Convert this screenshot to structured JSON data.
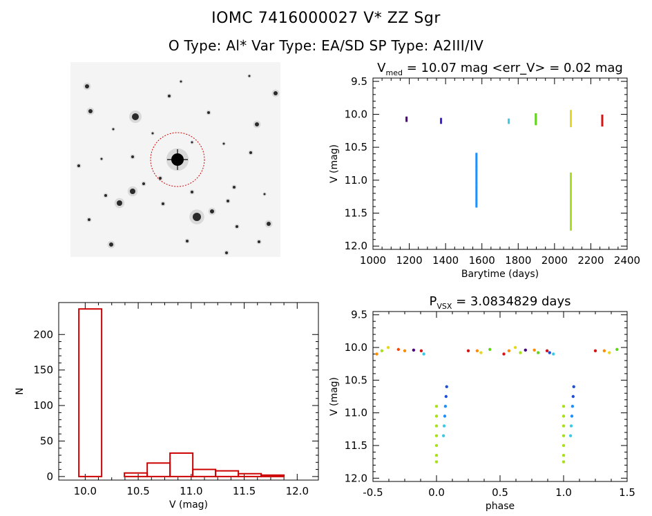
{
  "header": {
    "line1": "IOMC 7416000027   V* ZZ Sgr",
    "line2": "O Type: Al*  Var Type: EA/SD  SP Type: A2III/IV"
  },
  "finder": {
    "bg": "#f4f4f4",
    "circle_color": "#cc0000"
  },
  "colors": {
    "hist": "#cc0000",
    "season_palette": [
      "#4b0082",
      "#1f4fd6",
      "#1e90ff",
      "#3cc9e6",
      "#7cd37a",
      "#a8e01a",
      "#e8d81a",
      "#ff8c00",
      "#ff4500",
      "#d41515"
    ]
  },
  "chart_data": [
    {
      "type": "scatter",
      "id": "lightcurve",
      "title_main": "V",
      "title_sub": "med",
      "title_rest": " = 10.07 mag <err_V> = 0.02 mag",
      "xlabel": "Barytime (days)",
      "ylabel": "V (mag)",
      "xlim": [
        1000,
        2400
      ],
      "ylim": [
        12.05,
        9.45
      ],
      "xticks": [
        "1000",
        "1200",
        "1400",
        "1600",
        "1800",
        "2000",
        "2200",
        "2400"
      ],
      "yticks": [
        "9.5",
        "10.0",
        "10.5",
        "11.0",
        "11.5",
        "12.0"
      ],
      "groups": [
        {
          "x": 1185,
          "y_min": 10.05,
          "y_max": 10.1,
          "color": "#4b0082"
        },
        {
          "x": 1375,
          "y_min": 10.07,
          "y_max": 10.13,
          "color": "#3b1fd6"
        },
        {
          "x": 1570,
          "y_min": 10.6,
          "y_max": 11.4,
          "color": "#1e90ff"
        },
        {
          "x": 1748,
          "y_min": 10.08,
          "y_max": 10.13,
          "color": "#3cc9e6"
        },
        {
          "x": 1897,
          "y_min": 10.0,
          "y_max": 10.15,
          "color": "#5ed41a"
        },
        {
          "x": 2090,
          "y_min": 9.95,
          "y_max": 10.18,
          "color": "#e8d81a"
        },
        {
          "x": 2090,
          "y_min": 10.9,
          "y_max": 11.75,
          "color": "#a8e01a"
        },
        {
          "x": 2263,
          "y_min": 10.02,
          "y_max": 10.17,
          "color": "#d41515"
        }
      ]
    },
    {
      "type": "scatter",
      "id": "phased",
      "title_main": "P",
      "title_sub": "VSX",
      "title_rest": " = 3.0834829 days",
      "xlabel": "phase",
      "ylabel": "V (mag)",
      "xlim": [
        -0.5,
        1.5
      ],
      "ylim": [
        12.05,
        9.45
      ],
      "xticks": [
        "-0.5",
        "0.0",
        "0.5",
        "1.0",
        "1.5"
      ],
      "yticks": [
        "9.5",
        "10.0",
        "10.5",
        "11.0",
        "11.5",
        "12.0"
      ],
      "eclipse_points": [
        {
          "x": 0.0,
          "y": 10.9,
          "color": "#a8e01a"
        },
        {
          "x": 0.0,
          "y": 11.05,
          "color": "#a8e01a"
        },
        {
          "x": 0.0,
          "y": 11.2,
          "color": "#a8e01a"
        },
        {
          "x": 0.0,
          "y": 11.35,
          "color": "#a8e01a"
        },
        {
          "x": 0.0,
          "y": 11.5,
          "color": "#a8e01a"
        },
        {
          "x": 0.0,
          "y": 11.65,
          "color": "#a8e01a"
        },
        {
          "x": 0.0,
          "y": 11.75,
          "color": "#a8e01a"
        },
        {
          "x": 0.055,
          "y": 11.35,
          "color": "#3cc9e6"
        },
        {
          "x": 0.06,
          "y": 11.2,
          "color": "#3cc9e6"
        },
        {
          "x": 0.065,
          "y": 11.05,
          "color": "#1e90ff"
        },
        {
          "x": 0.07,
          "y": 10.9,
          "color": "#1e90ff"
        },
        {
          "x": 0.075,
          "y": 10.75,
          "color": "#1f4fd6"
        },
        {
          "x": 0.08,
          "y": 10.6,
          "color": "#1f4fd6"
        }
      ],
      "max_points": [
        {
          "x": -0.47,
          "y": 10.1,
          "color": "#ff8c00"
        },
        {
          "x": -0.43,
          "y": 10.05,
          "color": "#a8e01a"
        },
        {
          "x": -0.38,
          "y": 10.0,
          "color": "#e8d81a"
        },
        {
          "x": -0.3,
          "y": 10.03,
          "color": "#ff4500"
        },
        {
          "x": -0.25,
          "y": 10.05,
          "color": "#ff8c00"
        },
        {
          "x": -0.18,
          "y": 10.04,
          "color": "#4b0082"
        },
        {
          "x": -0.12,
          "y": 10.05,
          "color": "#d41515"
        },
        {
          "x": -0.1,
          "y": 10.1,
          "color": "#3cc9e6"
        },
        {
          "x": 0.25,
          "y": 10.05,
          "color": "#d41515"
        },
        {
          "x": 0.32,
          "y": 10.05,
          "color": "#ff8c00"
        },
        {
          "x": 0.35,
          "y": 10.08,
          "color": "#e8d81a"
        },
        {
          "x": 0.42,
          "y": 10.03,
          "color": "#5ed41a"
        },
        {
          "x": 0.53,
          "y": 10.1,
          "color": "#d41515"
        },
        {
          "x": 0.57,
          "y": 10.05,
          "color": "#ff8c00"
        },
        {
          "x": 0.62,
          "y": 10.0,
          "color": "#e8d81a"
        },
        {
          "x": 0.66,
          "y": 10.08,
          "color": "#a8e01a"
        },
        {
          "x": 0.7,
          "y": 10.04,
          "color": "#4b0082"
        },
        {
          "x": 0.77,
          "y": 10.04,
          "color": "#ff8c00"
        },
        {
          "x": 0.8,
          "y": 10.08,
          "color": "#5ed41a"
        },
        {
          "x": 0.87,
          "y": 10.05,
          "color": "#d41515"
        },
        {
          "x": 0.89,
          "y": 10.08,
          "color": "#1f4fd6"
        },
        {
          "x": 0.92,
          "y": 10.1,
          "color": "#3cc9e6"
        },
        {
          "x": 1.25,
          "y": 10.05,
          "color": "#d41515"
        },
        {
          "x": 1.32,
          "y": 10.05,
          "color": "#ff8c00"
        },
        {
          "x": 1.36,
          "y": 10.08,
          "color": "#e8d81a"
        },
        {
          "x": 1.42,
          "y": 10.03,
          "color": "#5ed41a"
        }
      ]
    },
    {
      "type": "bar",
      "id": "histogram",
      "xlabel": "V (mag)",
      "ylabel": "N",
      "xlim": [
        9.75,
        12.2
      ],
      "ylim": [
        -5,
        245
      ],
      "xticks": [
        "10.0",
        "10.5",
        "11.0",
        "11.5",
        "12.0"
      ],
      "yticks": [
        "0",
        "50",
        "100",
        "150",
        "200"
      ],
      "bins": [
        {
          "x0": 9.94,
          "x1": 10.155,
          "count": 236
        },
        {
          "x0": 10.155,
          "x1": 10.37,
          "count": 0
        },
        {
          "x0": 10.37,
          "x1": 10.585,
          "count": 5
        },
        {
          "x0": 10.585,
          "x1": 10.8,
          "count": 19
        },
        {
          "x0": 10.8,
          "x1": 11.015,
          "count": 33
        },
        {
          "x0": 11.015,
          "x1": 11.23,
          "count": 10
        },
        {
          "x0": 11.23,
          "x1": 11.445,
          "count": 8
        },
        {
          "x0": 11.445,
          "x1": 11.66,
          "count": 4
        },
        {
          "x0": 11.66,
          "x1": 11.875,
          "count": 2
        }
      ]
    }
  ]
}
